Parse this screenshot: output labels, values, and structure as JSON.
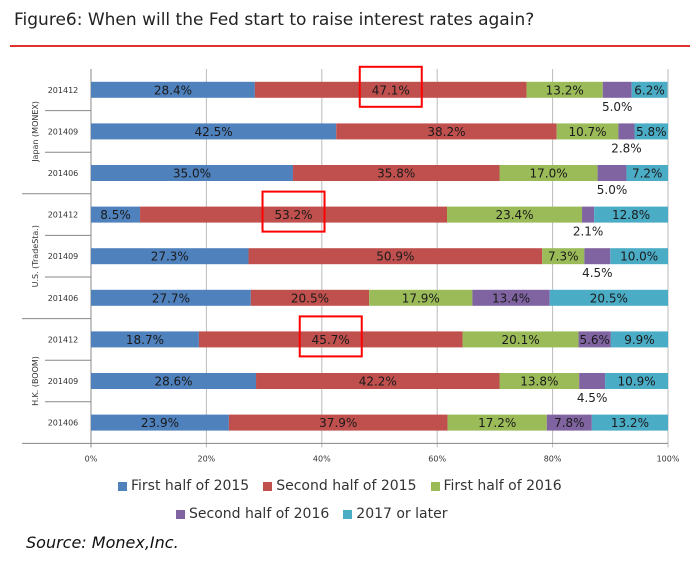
{
  "title": "Figure6:  When will the Fed start to raise interest rates again?",
  "source": "Source: Monex,Inc.",
  "chart_data": {
    "type": "bar",
    "orientation": "horizontal-stacked-100",
    "groups": [
      {
        "label": "Japan (MONEX)",
        "rows": [
          0,
          1,
          2
        ]
      },
      {
        "label": "U.S. (TradeSta.)",
        "rows": [
          3,
          4,
          5
        ]
      },
      {
        "label": "H.K. (BOOM)",
        "rows": [
          6,
          7,
          8
        ]
      }
    ],
    "categories": [
      "201412",
      "201409",
      "201406",
      "201412",
      "201409",
      "201406",
      "201412",
      "201409",
      "201406"
    ],
    "series": [
      {
        "name": "First half of 2015",
        "color": "#4f81bd",
        "values": [
          28.4,
          42.5,
          35.0,
          8.5,
          27.3,
          27.7,
          18.7,
          28.6,
          23.9
        ]
      },
      {
        "name": "Second half of 2015",
        "color": "#c0504d",
        "values": [
          47.1,
          38.2,
          35.8,
          53.2,
          50.9,
          20.5,
          45.7,
          42.2,
          37.9
        ]
      },
      {
        "name": "First half of 2016",
        "color": "#9bbb59",
        "values": [
          13.2,
          10.7,
          17.0,
          23.4,
          7.3,
          17.9,
          20.1,
          13.8,
          17.2
        ]
      },
      {
        "name": "Second half of 2016",
        "color": "#8064a2",
        "values": [
          5.0,
          2.8,
          5.0,
          2.1,
          4.5,
          13.4,
          5.6,
          4.5,
          7.8
        ]
      },
      {
        "name": "2017 or later",
        "color": "#4bacc6",
        "values": [
          6.2,
          5.8,
          7.2,
          12.8,
          10.0,
          20.5,
          9.9,
          10.9,
          13.2
        ]
      }
    ],
    "labels_outside_series3": [
      true,
      true,
      true,
      true,
      true,
      false,
      false,
      true,
      false
    ],
    "highlighted_rows": [
      0,
      3,
      6
    ],
    "xticks": [
      "0%",
      "20%",
      "40%",
      "60%",
      "80%",
      "100%"
    ],
    "xlim": [
      0,
      100
    ],
    "grid": true,
    "legend_position": "bottom"
  }
}
